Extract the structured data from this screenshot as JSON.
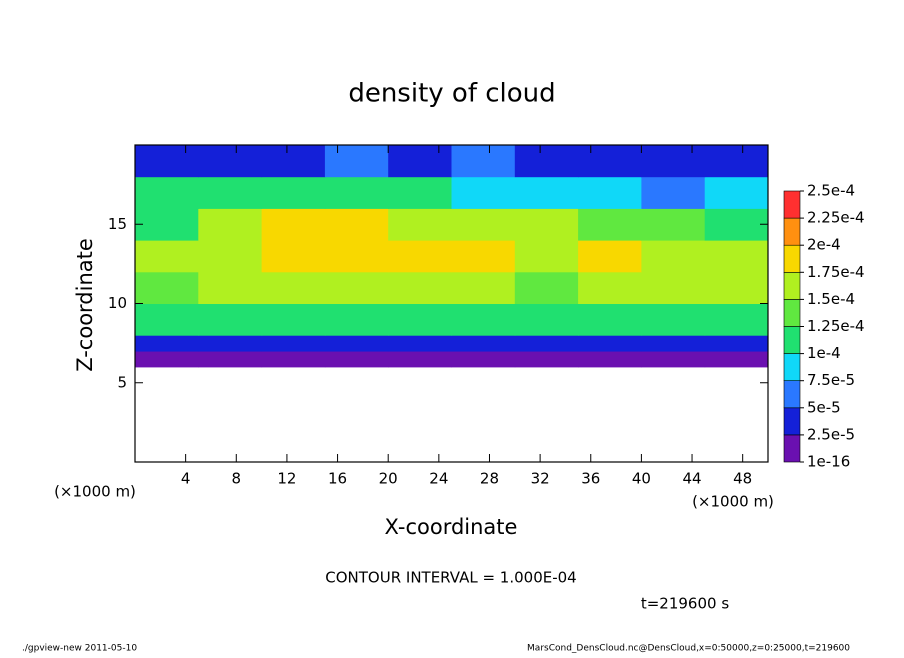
{
  "chart_data": {
    "type": "heatmap",
    "title": "density of cloud",
    "x_label": "X-coordinate",
    "y_label": "Z-coordinate",
    "x_unit": "(×1000 m)",
    "y_unit": "(×1000 m)",
    "contour_note": "CONTOUR INTERVAL = 1.000E-04",
    "time_label": "t=219600 s",
    "footer_left": "./gpview-new  2011-05-10",
    "footer_right": "MarsCond_DensCloud.nc@DensCloud,x=0:50000,z=0:25000,t=219600",
    "xlim": [
      0,
      50
    ],
    "ylim": [
      0,
      20
    ],
    "xticks": [
      4,
      8,
      12,
      16,
      20,
      24,
      28,
      32,
      36,
      40,
      44,
      48
    ],
    "yticks": [
      5,
      10,
      15
    ],
    "x_edges": [
      0,
      5,
      10,
      15,
      20,
      25,
      30,
      35,
      40,
      45,
      50
    ],
    "y_edges": [
      6,
      7,
      8,
      10,
      12,
      14,
      16,
      18,
      20
    ],
    "z": [
      [
        1e-05,
        1e-05,
        1e-05,
        1e-05,
        1e-05,
        1e-05,
        1e-05,
        1e-05,
        1e-05,
        1e-05
      ],
      [
        4e-05,
        3e-05,
        3.5e-05,
        3e-05,
        4e-05,
        3e-05,
        3.5e-05,
        3e-05,
        4e-05,
        3e-05
      ],
      [
        0.00012,
        0.00011,
        0.000115,
        0.00011,
        0.00012,
        0.00011,
        0.000115,
        0.00011,
        0.00012,
        0.00011
      ],
      [
        0.00013,
        0.000155,
        0.00016,
        0.00017,
        0.000165,
        0.000155,
        0.000145,
        0.00016,
        0.000155,
        0.00015
      ],
      [
        0.00015,
        0.00017,
        0.000185,
        0.00019,
        0.00018,
        0.000175,
        0.00017,
        0.000175,
        0.00016,
        0.000155
      ],
      [
        0.00012,
        0.000165,
        0.00018,
        0.000175,
        0.00016,
        0.000155,
        0.00015,
        0.000145,
        0.00013,
        0.00012
      ],
      [
        0.00011,
        0.00012,
        0.00011,
        0.000105,
        0.0001,
        9e-05,
        9e-05,
        9e-05,
        6e-05,
        8e-05
      ],
      [
        3e-05,
        4e-05,
        4e-05,
        5e-05,
        4e-05,
        5e-05,
        4e-05,
        4e-05,
        3e-05,
        3e-05
      ]
    ],
    "colorbar_ticks": [
      1e-16,
      {
        "value": 2.5e-05,
        "label": "2.5e-5"
      },
      {
        "value": 5e-05,
        "label": "5e-5"
      },
      {
        "value": 7.5e-05,
        "label": "7.5e-5"
      },
      {
        "value": 0.0001,
        "label": "1e-4"
      },
      {
        "value": 0.000125,
        "label": "1.25e-4"
      },
      {
        "value": 0.00015,
        "label": "1.5e-4"
      },
      {
        "value": 0.000175,
        "label": "1.75e-4"
      },
      {
        "value": 0.0002,
        "label": "2e-4"
      },
      {
        "value": 0.000225,
        "label": "2.25e-4"
      },
      {
        "value": 0.00025,
        "label": "2.5e-4"
      }
    ],
    "colors": [
      "#6a10b0",
      "#1420d8",
      "#2a78ff",
      "#10d8f8",
      "#20e070",
      "#60e840",
      "#b0f020",
      "#f8d800",
      "#ff9010",
      "#ff3030"
    ]
  }
}
